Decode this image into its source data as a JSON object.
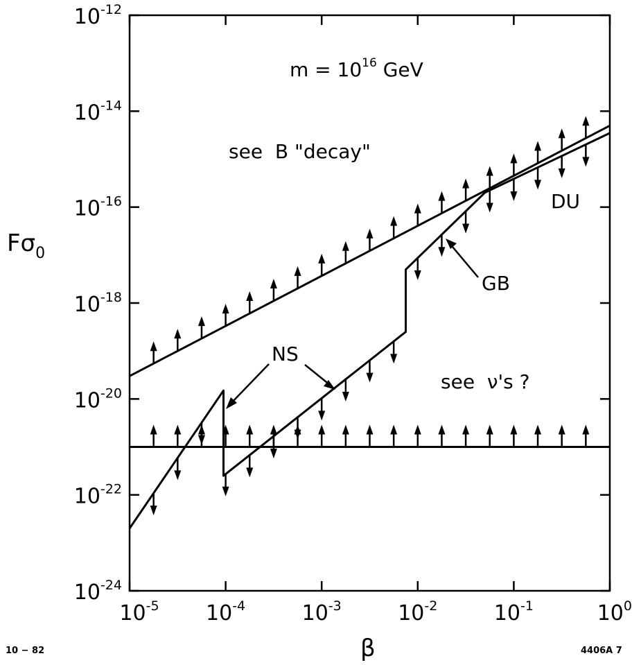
{
  "chart_data": {
    "type": "line",
    "xlabel": "β",
    "ylabel_base": "Fσ",
    "ylabel_sub": "0",
    "xscale": "log",
    "yscale": "log",
    "xlim": [
      1e-05,
      1
    ],
    "ylim": [
      1e-24,
      1e-12
    ],
    "x_ticks": [
      {
        "base": "10",
        "exp": "-5",
        "value": 1e-05
      },
      {
        "base": "10",
        "exp": "-4",
        "value": 0.0001
      },
      {
        "base": "10",
        "exp": "-3",
        "value": 0.001
      },
      {
        "base": "10",
        "exp": "-2",
        "value": 0.01
      },
      {
        "base": "10",
        "exp": "-1",
        "value": 0.1
      },
      {
        "base": "10",
        "exp": "0",
        "value": 1
      }
    ],
    "y_ticks": [
      {
        "base": "10",
        "exp": "-24",
        "value": 1e-24
      },
      {
        "base": "10",
        "exp": "-22",
        "value": 1e-22
      },
      {
        "base": "10",
        "exp": "-20",
        "value": 1e-20
      },
      {
        "base": "10",
        "exp": "-18",
        "value": 1e-18
      },
      {
        "base": "10",
        "exp": "-16",
        "value": 1e-16
      },
      {
        "base": "10",
        "exp": "-14",
        "value": 1e-14
      },
      {
        "base": "10",
        "exp": "-12",
        "value": 1e-12
      }
    ],
    "series": [
      {
        "id": "du",
        "label": "DU",
        "arrows": "up",
        "points": [
          [
            1e-05,
            3e-20
          ],
          [
            1,
            5e-15
          ]
        ]
      },
      {
        "id": "horizontal",
        "arrows": "up",
        "points": [
          [
            1e-05,
            1e-21
          ],
          [
            1,
            1e-21
          ]
        ]
      },
      {
        "id": "ns_gb",
        "arrows": "down",
        "points": [
          [
            1e-05,
            2e-23
          ],
          [
            9.5e-05,
            1.5e-20
          ],
          [
            9.5e-05,
            2.5e-22
          ],
          [
            0.0075,
            2.5e-19
          ],
          [
            0.0075,
            5e-18
          ],
          [
            0.05,
            2e-16
          ],
          [
            1,
            3.5e-15
          ]
        ]
      }
    ],
    "annotations": {
      "mass": {
        "prefix": "m = 10",
        "exp": "16",
        "suffix": " GeV"
      },
      "b_decay": "see  B \"decay\"",
      "neutrinos": "see  ν's ?",
      "du": "DU",
      "gb": "GB",
      "ns": "NS"
    },
    "grid": false
  },
  "footer": {
    "left": "10 − 82",
    "right": "4406A 7"
  }
}
